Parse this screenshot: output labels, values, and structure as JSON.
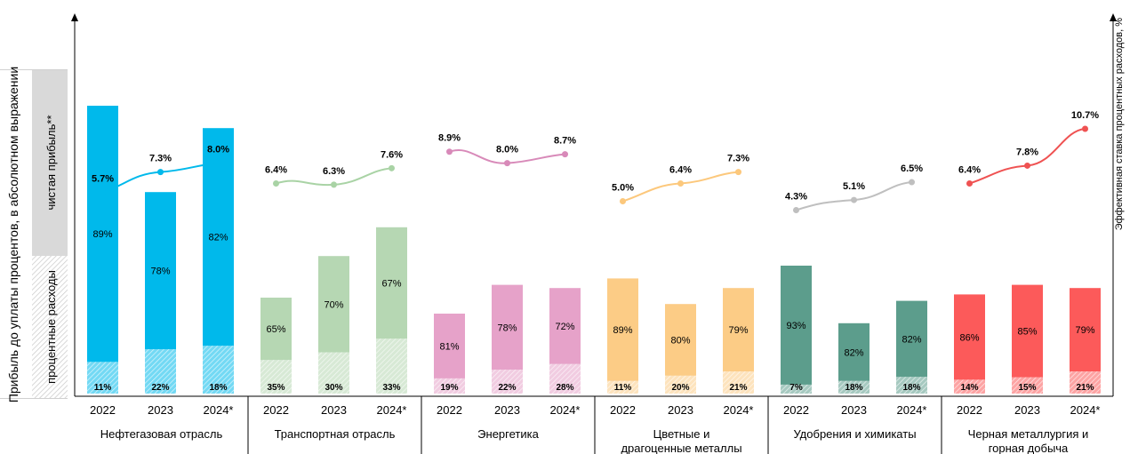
{
  "left_axis": {
    "label": "Прибыль до уплаты процентов, в абсолютном выражении",
    "net_profit_label": "чистая прибыль**",
    "interest_label": "процентные расходы"
  },
  "right_axis": {
    "label": "Эффективная ставка процентных расходов, %"
  },
  "colors": {
    "legend_gray": "#d9d9d9",
    "sectors": [
      "#00b9eb",
      "#b6d7b3",
      "#e6a2c9",
      "#fccc86",
      "#5c9d8c",
      "#fc5a5a"
    ],
    "lines": [
      "#00b9eb",
      "#a9d3a5",
      "#d88ab9",
      "#fcc87c",
      "#bfbfbf",
      "#ef5252"
    ]
  },
  "chart_data": {
    "type": "bar",
    "categories": [
      "2022",
      "2023",
      "2024*"
    ],
    "groups": [
      {
        "name": "Нефтегазовая отрасль",
        "profit_height": [
          9.0,
          6.3,
          8.3
        ],
        "net_profit_share": [
          "89%",
          "78%",
          "82%"
        ],
        "interest_share": [
          "11%",
          "22%",
          "18%"
        ],
        "rate": [
          5.7,
          7.3,
          8.0
        ],
        "rate_labels": [
          "5.7%",
          "7.3%",
          "8.0%"
        ]
      },
      {
        "name": "Транспортная отрасль",
        "profit_height": [
          3.0,
          4.3,
          5.2
        ],
        "net_profit_share": [
          "65%",
          "70%",
          "67%"
        ],
        "interest_share": [
          "35%",
          "30%",
          "33%"
        ],
        "rate": [
          6.4,
          6.3,
          7.6
        ],
        "rate_labels": [
          "6.4%",
          "6.3%",
          "7.6%"
        ]
      },
      {
        "name": "Энергетика",
        "profit_height": [
          2.5,
          3.4,
          3.3
        ],
        "net_profit_share": [
          "81%",
          "78%",
          "72%"
        ],
        "interest_share": [
          "19%",
          "22%",
          "28%"
        ],
        "rate": [
          8.9,
          8.0,
          8.7
        ],
        "rate_labels": [
          "8.9%",
          "8.0%",
          "8.7%"
        ]
      },
      {
        "name": "Цветные и драгоценные металлы",
        "profit_height": [
          3.6,
          2.8,
          3.3
        ],
        "net_profit_share": [
          "89%",
          "80%",
          "79%"
        ],
        "interest_share": [
          "11%",
          "20%",
          "21%"
        ],
        "rate": [
          5.0,
          6.4,
          7.3
        ],
        "rate_labels": [
          "5.0%",
          "6.4%",
          "7.3%"
        ]
      },
      {
        "name": "Удобрения и химикаты",
        "profit_height": [
          4.0,
          2.2,
          2.9
        ],
        "net_profit_share": [
          "93%",
          "82%",
          "82%"
        ],
        "interest_share": [
          "7%",
          "18%",
          "18%"
        ],
        "rate": [
          4.3,
          5.1,
          6.5
        ],
        "rate_labels": [
          "4.3%",
          "5.1%",
          "6.5%"
        ]
      },
      {
        "name": "Черная металлургия и горная добыча",
        "profit_height": [
          3.1,
          3.4,
          3.3
        ],
        "net_profit_share": [
          "86%",
          "85%",
          "79%"
        ],
        "interest_share": [
          "14%",
          "15%",
          "21%"
        ],
        "rate": [
          6.4,
          7.8,
          10.7
        ],
        "rate_labels": [
          "6.4%",
          "7.8%",
          "10.7%"
        ]
      }
    ]
  }
}
